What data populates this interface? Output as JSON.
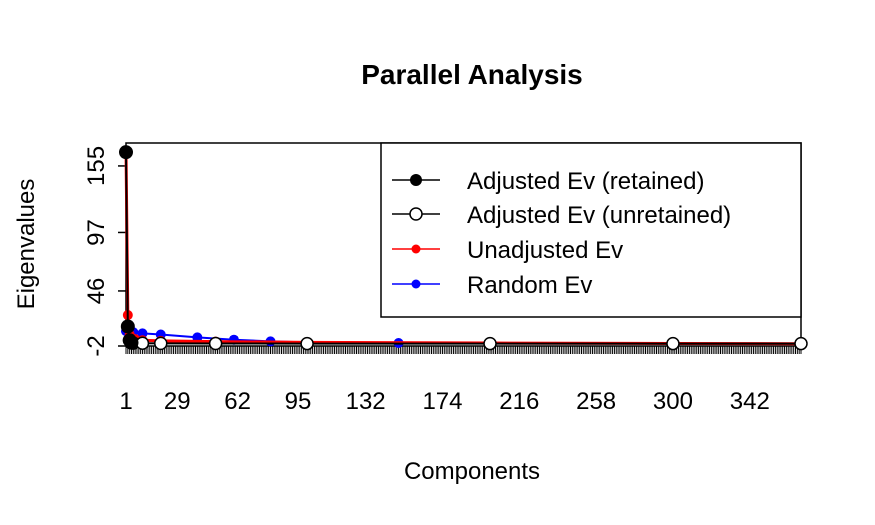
{
  "chart_data": {
    "type": "line",
    "title": "Parallel Analysis",
    "xlabel": "Components",
    "ylabel": "Eigenvalues",
    "xlim": [
      1,
      370
    ],
    "ylim": [
      -2,
      175
    ],
    "x_ticks": [
      "1",
      "29",
      "62",
      "95",
      "132",
      "174",
      "216",
      "258",
      "300",
      "342"
    ],
    "y_ticks": [
      "-2",
      "46",
      "97",
      "155"
    ],
    "legend_position": "top-right",
    "series": [
      {
        "name": "Adjusted Ev (retained)",
        "color": "#000000",
        "marker": "filled-circle",
        "x": [
          1,
          2,
          3,
          4
        ],
        "values": [
          167,
          15,
          3,
          0.8
        ]
      },
      {
        "name": "Adjusted Ev (unretained)",
        "color": "#000000",
        "marker": "open-circle",
        "x": [
          5,
          10,
          20,
          50,
          100,
          200,
          300,
          370
        ],
        "values": [
          0.5,
          0.4,
          0.3,
          0.2,
          0.1,
          0.1,
          0.1,
          0.1
        ]
      },
      {
        "name": "Unadjusted Ev",
        "color": "#ff0000",
        "marker": "filled-circle",
        "x": [
          1,
          2,
          3,
          4,
          6,
          10,
          20,
          50,
          100,
          200,
          300,
          370
        ],
        "values": [
          168,
          25,
          8,
          5,
          4,
          3,
          2.5,
          1.8,
          1.2,
          0.6,
          0.2,
          0.0
        ]
      },
      {
        "name": "Random Ev",
        "color": "#0000ff",
        "marker": "filled-circle",
        "x": [
          1,
          2,
          5,
          10,
          20,
          40,
          60,
          80,
          100,
          150,
          200,
          300,
          370
        ],
        "values": [
          11,
          10.5,
          10,
          9,
          8,
          5.5,
          3.5,
          2,
          1.2,
          0.6,
          0.4,
          0.2,
          0.1
        ]
      }
    ]
  }
}
